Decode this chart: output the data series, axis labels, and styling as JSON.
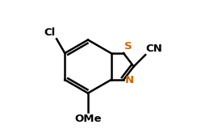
{
  "bg_color": "#ffffff",
  "lw": 1.8,
  "bond_color": "#000000",
  "S_color": "#cc6600",
  "N_color": "#cc6600",
  "text_color": "#000000",
  "xlim": [
    0.0,
    1.0
  ],
  "ylim": [
    0.0,
    1.0
  ]
}
